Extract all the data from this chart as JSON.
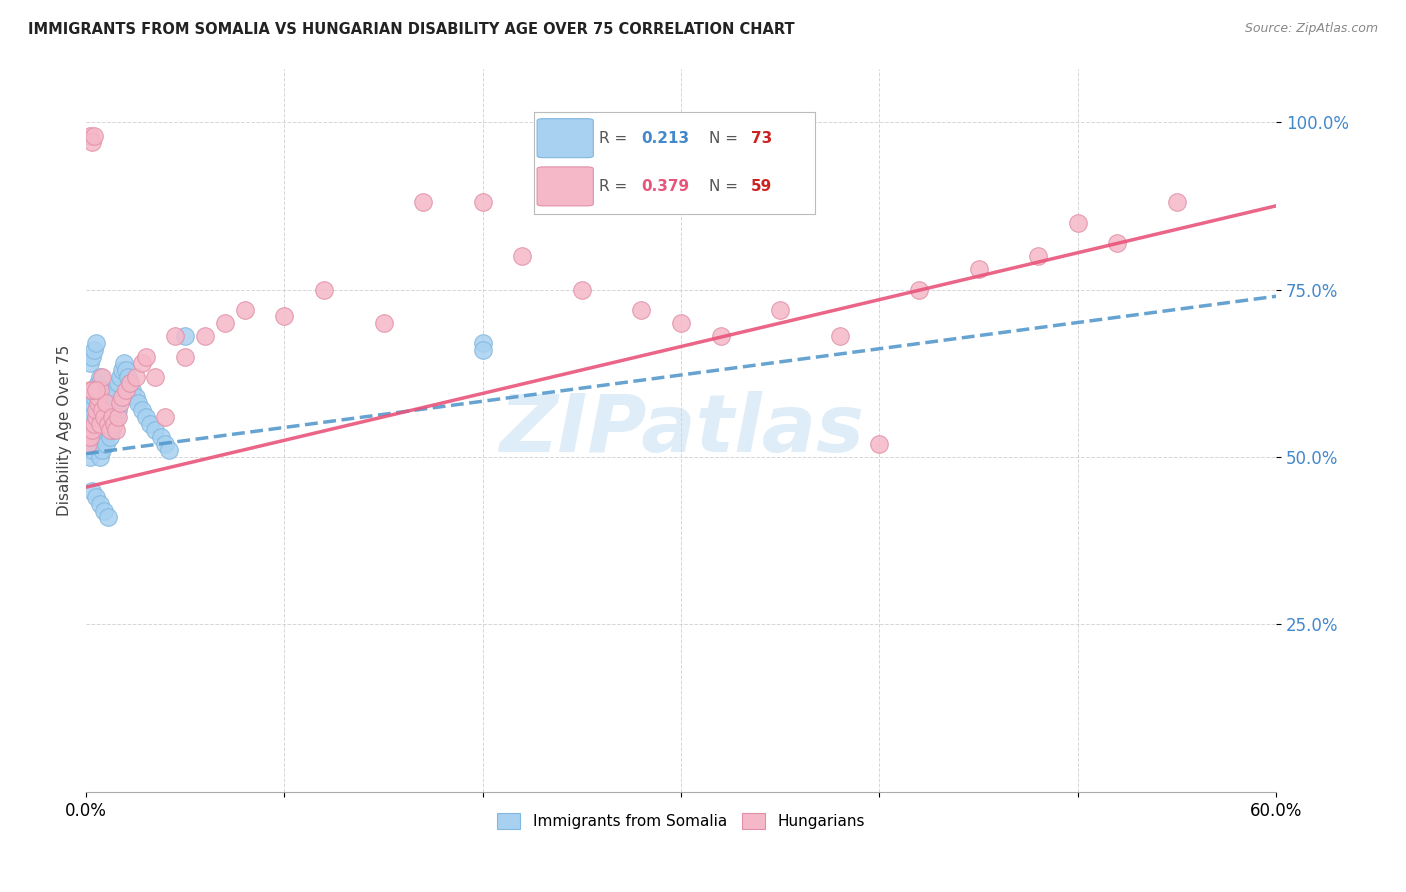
{
  "title": "IMMIGRANTS FROM SOMALIA VS HUNGARIAN DISABILITY AGE OVER 75 CORRELATION CHART",
  "source": "Source: ZipAtlas.com",
  "ylabel": "Disability Age Over 75",
  "xmin": 0.0,
  "xmax": 0.6,
  "ymin": 0.0,
  "ymax": 1.08,
  "yticks": [
    0.25,
    0.5,
    0.75,
    1.0
  ],
  "ytick_labels": [
    "25.0%",
    "50.0%",
    "75.0%",
    "100.0%"
  ],
  "color_somalia": "#a8d0f0",
  "color_hungary": "#f5b8c8",
  "color_somalia_line": "#5599cc",
  "color_hungary_line": "#e8547a",
  "watermark": "ZIPatlas",
  "legend_soma_r": "0.213",
  "legend_soma_n": "73",
  "legend_hung_r": "0.379",
  "legend_hung_n": "59",
  "soma_x": [
    0.001,
    0.001,
    0.001,
    0.002,
    0.002,
    0.002,
    0.002,
    0.003,
    0.003,
    0.003,
    0.003,
    0.004,
    0.004,
    0.004,
    0.004,
    0.005,
    0.005,
    0.005,
    0.005,
    0.006,
    0.006,
    0.006,
    0.006,
    0.007,
    0.007,
    0.007,
    0.007,
    0.008,
    0.008,
    0.008,
    0.008,
    0.009,
    0.009,
    0.009,
    0.01,
    0.01,
    0.01,
    0.011,
    0.011,
    0.012,
    0.012,
    0.013,
    0.013,
    0.014,
    0.014,
    0.015,
    0.015,
    0.016,
    0.016,
    0.017,
    0.018,
    0.019,
    0.02,
    0.021,
    0.022,
    0.023,
    0.025,
    0.026,
    0.028,
    0.03,
    0.032,
    0.035,
    0.038,
    0.04,
    0.042,
    0.05,
    0.2,
    0.2,
    0.003,
    0.005,
    0.007,
    0.009,
    0.011
  ],
  "soma_y": [
    0.52,
    0.54,
    0.57,
    0.5,
    0.53,
    0.56,
    0.64,
    0.51,
    0.54,
    0.58,
    0.65,
    0.52,
    0.55,
    0.59,
    0.66,
    0.53,
    0.56,
    0.6,
    0.67,
    0.54,
    0.57,
    0.61,
    0.52,
    0.55,
    0.58,
    0.62,
    0.5,
    0.53,
    0.56,
    0.6,
    0.51,
    0.54,
    0.57,
    0.53,
    0.55,
    0.59,
    0.52,
    0.56,
    0.54,
    0.57,
    0.53,
    0.58,
    0.54,
    0.59,
    0.55,
    0.6,
    0.56,
    0.61,
    0.57,
    0.62,
    0.63,
    0.64,
    0.63,
    0.62,
    0.61,
    0.6,
    0.59,
    0.58,
    0.57,
    0.56,
    0.55,
    0.54,
    0.53,
    0.52,
    0.51,
    0.68,
    0.67,
    0.66,
    0.45,
    0.44,
    0.43,
    0.42,
    0.41
  ],
  "hung_x": [
    0.001,
    0.002,
    0.002,
    0.003,
    0.003,
    0.004,
    0.004,
    0.005,
    0.005,
    0.006,
    0.006,
    0.007,
    0.007,
    0.008,
    0.008,
    0.009,
    0.01,
    0.011,
    0.012,
    0.013,
    0.014,
    0.015,
    0.016,
    0.017,
    0.018,
    0.02,
    0.022,
    0.025,
    0.028,
    0.03,
    0.035,
    0.04,
    0.045,
    0.05,
    0.06,
    0.07,
    0.08,
    0.1,
    0.12,
    0.15,
    0.17,
    0.2,
    0.22,
    0.25,
    0.28,
    0.3,
    0.32,
    0.35,
    0.38,
    0.4,
    0.42,
    0.45,
    0.48,
    0.5,
    0.52,
    0.55,
    0.002,
    0.003,
    0.005
  ],
  "hung_y": [
    0.52,
    0.98,
    0.53,
    0.97,
    0.54,
    0.98,
    0.55,
    0.56,
    0.57,
    0.58,
    0.59,
    0.6,
    0.55,
    0.57,
    0.62,
    0.56,
    0.58,
    0.55,
    0.54,
    0.56,
    0.55,
    0.54,
    0.56,
    0.58,
    0.59,
    0.6,
    0.61,
    0.62,
    0.64,
    0.65,
    0.62,
    0.56,
    0.68,
    0.65,
    0.68,
    0.7,
    0.72,
    0.71,
    0.75,
    0.7,
    0.88,
    0.88,
    0.8,
    0.75,
    0.72,
    0.7,
    0.68,
    0.72,
    0.68,
    0.52,
    0.75,
    0.78,
    0.8,
    0.85,
    0.82,
    0.88,
    0.6,
    0.6,
    0.6
  ]
}
